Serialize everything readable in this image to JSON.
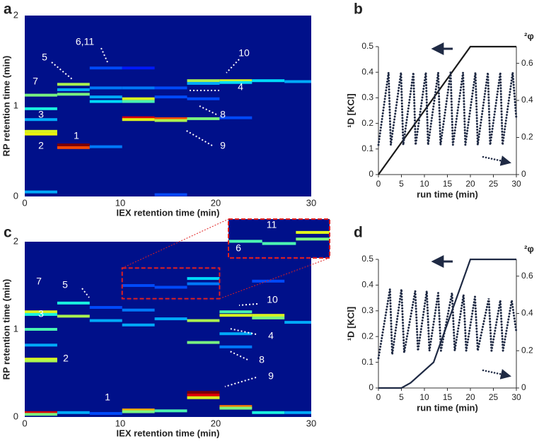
{
  "chart_data": [
    {
      "type": "heatmap",
      "label": "a",
      "xlabel": "IEX retention time (min)",
      "ylabel": "RP retention time (min)",
      "xlim": [
        0,
        30
      ],
      "ylim": [
        0,
        2
      ],
      "xticks": [
        0,
        10,
        20,
        30
      ],
      "yticks": [
        0,
        1,
        2
      ],
      "background": "#00108a",
      "peaks": [
        {
          "x": [
            0,
            3.4
          ],
          "y": 1.12,
          "z": 0.5
        },
        {
          "x": [
            0,
            3.4
          ],
          "y": 0.97,
          "z": 0.4
        },
        {
          "x": [
            0,
            3.4
          ],
          "y": 0.85,
          "z": 0.3
        },
        {
          "x": [
            0,
            3.4
          ],
          "y": 0.72,
          "z": 0.6
        },
        {
          "x": [
            0,
            3.4
          ],
          "y": 0.69,
          "z": 0.62
        },
        {
          "x": [
            0,
            3.4
          ],
          "y": 0.05,
          "z": 0.3
        },
        {
          "x": [
            3.4,
            6.8
          ],
          "y": 1.24,
          "z": 0.55
        },
        {
          "x": [
            3.4,
            6.8
          ],
          "y": 1.18,
          "z": 0.3
        },
        {
          "x": [
            3.4,
            6.8
          ],
          "y": 1.13,
          "z": 0.5
        },
        {
          "x": [
            3.4,
            6.8
          ],
          "y": 0.57,
          "z": 1.0
        },
        {
          "x": [
            3.4,
            6.8
          ],
          "y": 0.54,
          "z": 0.8
        },
        {
          "x": [
            6.8,
            10.2
          ],
          "y": 1.42,
          "z": 0.2
        },
        {
          "x": [
            6.8,
            10.2
          ],
          "y": 1.2,
          "z": 0.25
        },
        {
          "x": [
            6.8,
            10.2
          ],
          "y": 1.1,
          "z": 0.3
        },
        {
          "x": [
            6.8,
            10.2
          ],
          "y": 1.05,
          "z": 0.35
        },
        {
          "x": [
            6.8,
            10.2
          ],
          "y": 0.55,
          "z": 0.25
        },
        {
          "x": [
            10.2,
            13.6
          ],
          "y": 1.42,
          "z": 0.15
        },
        {
          "x": [
            10.2,
            13.6
          ],
          "y": 1.2,
          "z": 0.25
        },
        {
          "x": [
            10.2,
            13.6
          ],
          "y": 1.08,
          "z": 0.6
        },
        {
          "x": [
            10.2,
            13.6
          ],
          "y": 1.05,
          "z": 0.45
        },
        {
          "x": [
            10.2,
            13.6
          ],
          "y": 0.87,
          "z": 0.9
        },
        {
          "x": [
            10.2,
            13.6
          ],
          "y": 0.85,
          "z": 0.6
        },
        {
          "x": [
            13.6,
            17
          ],
          "y": 1.2,
          "z": 0.2
        },
        {
          "x": [
            13.6,
            17
          ],
          "y": 1.1,
          "z": 0.2
        },
        {
          "x": [
            13.6,
            17
          ],
          "y": 0.86,
          "z": 0.8
        },
        {
          "x": [
            13.6,
            17
          ],
          "y": 0.84,
          "z": 0.55
        },
        {
          "x": [
            13.6,
            17
          ],
          "y": 0.02,
          "z": 0.2
        },
        {
          "x": [
            17,
            20.4
          ],
          "y": 1.28,
          "z": 0.55
        },
        {
          "x": [
            17,
            20.4
          ],
          "y": 1.25,
          "z": 0.3
        },
        {
          "x": [
            17,
            20.4
          ],
          "y": 1.08,
          "z": 0.2
        },
        {
          "x": [
            17,
            20.4
          ],
          "y": 0.86,
          "z": 0.5
        },
        {
          "x": [
            20.4,
            23.8
          ],
          "y": 1.28,
          "z": 0.6
        },
        {
          "x": [
            20.4,
            23.8
          ],
          "y": 1.26,
          "z": 0.35
        },
        {
          "x": [
            20.4,
            23.8
          ],
          "y": 0.87,
          "z": 0.2
        },
        {
          "x": [
            23.8,
            27.2
          ],
          "y": 1.28,
          "z": 0.35
        },
        {
          "x": [
            27.2,
            30
          ],
          "y": 1.27,
          "z": 0.3
        }
      ],
      "annotations": [
        "7",
        "3",
        "2",
        "5",
        "1",
        "6,11",
        "10",
        "4",
        "8",
        "9"
      ]
    },
    {
      "type": "line",
      "label": "b",
      "xlabel": "run time (min)",
      "ylabel": "¹D [KCl]",
      "y2label": "²φ",
      "xlim": [
        0,
        30
      ],
      "ylim": [
        0,
        0.5
      ],
      "y2lim": [
        0,
        0.69
      ],
      "xticks": [
        0,
        5,
        10,
        15,
        20,
        25,
        30
      ],
      "yticks": [
        0,
        0.1,
        0.2,
        0.3,
        0.4,
        0.5
      ],
      "y2ticks": [
        0,
        0.2,
        0.4,
        0.6
      ],
      "series": [
        {
          "color": "#1a1a1a",
          "style": "solid",
          "x": [
            0,
            20,
            30
          ],
          "values": [
            0,
            0.5,
            0.5
          ]
        },
        {
          "color": "#1f2a44",
          "style": "dotted",
          "axis": "y2",
          "x": [
            0,
            2.2,
            2.7,
            4.9,
            5.4,
            7.6,
            8.1,
            10.3,
            10.8,
            13,
            13.5,
            15.7,
            16.2,
            18.4,
            18.9,
            21.1,
            21.6,
            23.8,
            24.3,
            26.5,
            27,
            29.2,
            30
          ],
          "values": [
            0.16,
            0.55,
            0.16,
            0.55,
            0.16,
            0.55,
            0.16,
            0.55,
            0.16,
            0.55,
            0.16,
            0.55,
            0.16,
            0.55,
            0.16,
            0.55,
            0.16,
            0.55,
            0.16,
            0.55,
            0.16,
            0.55,
            0.3
          ]
        }
      ]
    },
    {
      "type": "heatmap",
      "label": "c",
      "xlabel": "IEX retention time (min)",
      "ylabel": "RP retention time (min)",
      "xlim": [
        0,
        30
      ],
      "ylim": [
        0,
        2
      ],
      "xticks": [
        0,
        10,
        20,
        30
      ],
      "yticks": [
        0,
        1,
        2
      ],
      "background": "#00108a",
      "peaks": [
        {
          "x": [
            0,
            3.4
          ],
          "y": 1.2,
          "z": 0.6
        },
        {
          "x": [
            0,
            3.4
          ],
          "y": 1.17,
          "z": 0.4
        },
        {
          "x": [
            0,
            3.4
          ],
          "y": 1.0,
          "z": 0.45
        },
        {
          "x": [
            0,
            3.4
          ],
          "y": 0.82,
          "z": 0.3
        },
        {
          "x": [
            0,
            3.4
          ],
          "y": 0.66,
          "z": 0.6
        },
        {
          "x": [
            0,
            3.4
          ],
          "y": 0.64,
          "z": 0.55
        },
        {
          "x": [
            0,
            3.4
          ],
          "y": 0.05,
          "z": 0.9
        },
        {
          "x": [
            0,
            3.4
          ],
          "y": 0.03,
          "z": 0.5
        },
        {
          "x": [
            3.4,
            6.8
          ],
          "y": 1.3,
          "z": 0.4
        },
        {
          "x": [
            3.4,
            6.8
          ],
          "y": 1.15,
          "z": 0.55
        },
        {
          "x": [
            3.4,
            6.8
          ],
          "y": 0.05,
          "z": 0.3
        },
        {
          "x": [
            6.8,
            10.2
          ],
          "y": 1.25,
          "z": 0.2
        },
        {
          "x": [
            6.8,
            10.2
          ],
          "y": 1.1,
          "z": 0.3
        },
        {
          "x": [
            6.8,
            10.2
          ],
          "y": 0.04,
          "z": 0.2
        },
        {
          "x": [
            10.2,
            13.6
          ],
          "y": 1.5,
          "z": 0.2
        },
        {
          "x": [
            10.2,
            13.6
          ],
          "y": 1.22,
          "z": 0.25
        },
        {
          "x": [
            10.2,
            13.6
          ],
          "y": 1.05,
          "z": 0.3
        },
        {
          "x": [
            10.2,
            13.6
          ],
          "y": 0.08,
          "z": 0.7
        },
        {
          "x": [
            10.2,
            13.6
          ],
          "y": 0.06,
          "z": 0.5
        },
        {
          "x": [
            13.6,
            17
          ],
          "y": 1.48,
          "z": 0.2
        },
        {
          "x": [
            13.6,
            17
          ],
          "y": 1.12,
          "z": 0.3
        },
        {
          "x": [
            13.6,
            17
          ],
          "y": 0.07,
          "z": 0.45
        },
        {
          "x": [
            17,
            20.4
          ],
          "y": 1.58,
          "z": 0.35
        },
        {
          "x": [
            17,
            20.4
          ],
          "y": 1.52,
          "z": 0.25
        },
        {
          "x": [
            17,
            20.4
          ],
          "y": 1.1,
          "z": 0.55
        },
        {
          "x": [
            17,
            20.4
          ],
          "y": 0.85,
          "z": 0.5
        },
        {
          "x": [
            17,
            20.4
          ],
          "y": 0.28,
          "z": 1.0
        },
        {
          "x": [
            17,
            20.4
          ],
          "y": 0.25,
          "z": 0.9
        },
        {
          "x": [
            17,
            20.4
          ],
          "y": 0.22,
          "z": 0.6
        },
        {
          "x": [
            20.4,
            23.8
          ],
          "y": 1.2,
          "z": 0.45
        },
        {
          "x": [
            20.4,
            23.8
          ],
          "y": 1.16,
          "z": 0.6
        },
        {
          "x": [
            20.4,
            23.8
          ],
          "y": 0.95,
          "z": 0.3
        },
        {
          "x": [
            20.4,
            23.8
          ],
          "y": 0.8,
          "z": 0.25
        },
        {
          "x": [
            20.4,
            23.8
          ],
          "y": 0.12,
          "z": 0.75
        },
        {
          "x": [
            20.4,
            23.8
          ],
          "y": 0.1,
          "z": 0.5
        },
        {
          "x": [
            23.8,
            27.2
          ],
          "y": 1.55,
          "z": 0.2
        },
        {
          "x": [
            23.8,
            27.2
          ],
          "y": 1.16,
          "z": 0.6
        },
        {
          "x": [
            23.8,
            27.2
          ],
          "y": 1.13,
          "z": 0.5
        },
        {
          "x": [
            23.8,
            27.2
          ],
          "y": 0.05,
          "z": 0.4
        },
        {
          "x": [
            27.2,
            30
          ],
          "y": 1.08,
          "z": 0.3
        },
        {
          "x": [
            27.2,
            30
          ],
          "y": 0.05,
          "z": 0.3
        }
      ],
      "annotations": [
        "7",
        "3",
        "2",
        "5",
        "1",
        "10",
        "4",
        "8",
        "9"
      ],
      "inset": {
        "xlim": [
          10.2,
          20.4
        ],
        "ylim": [
          1.35,
          1.7
        ],
        "annotations": [
          "11",
          "6"
        ]
      }
    },
    {
      "type": "line",
      "label": "d",
      "xlabel": "run time (min)",
      "ylabel": "¹D [KCl]",
      "y2label": "²φ",
      "xlim": [
        0,
        30
      ],
      "ylim": [
        0,
        0.5
      ],
      "y2lim": [
        0,
        0.69
      ],
      "xticks": [
        0,
        5,
        10,
        15,
        20,
        25,
        30
      ],
      "yticks": [
        0,
        0.1,
        0.2,
        0.3,
        0.4,
        0.5
      ],
      "y2ticks": [
        0,
        0.2,
        0.4,
        0.6
      ],
      "series": [
        {
          "color": "#1f2a44",
          "style": "solid",
          "x": [
            0,
            5,
            7,
            12,
            20,
            30
          ],
          "values": [
            0,
            0,
            0.02,
            0.1,
            0.5,
            0.5
          ]
        },
        {
          "color": "#1f2a44",
          "style": "dotted",
          "axis": "y2",
          "x": [
            0,
            2.5,
            3,
            5,
            5.6,
            8,
            8.6,
            10.5,
            11.1,
            13,
            13.6,
            16,
            16.6,
            18.5,
            19.1,
            21,
            21.6,
            24,
            24.6,
            26.5,
            27.1,
            29,
            30
          ],
          "values": [
            0.16,
            0.53,
            0.18,
            0.53,
            0.19,
            0.52,
            0.2,
            0.52,
            0.2,
            0.51,
            0.2,
            0.51,
            0.2,
            0.5,
            0.2,
            0.49,
            0.2,
            0.48,
            0.2,
            0.47,
            0.2,
            0.47,
            0.3
          ]
        }
      ]
    }
  ]
}
